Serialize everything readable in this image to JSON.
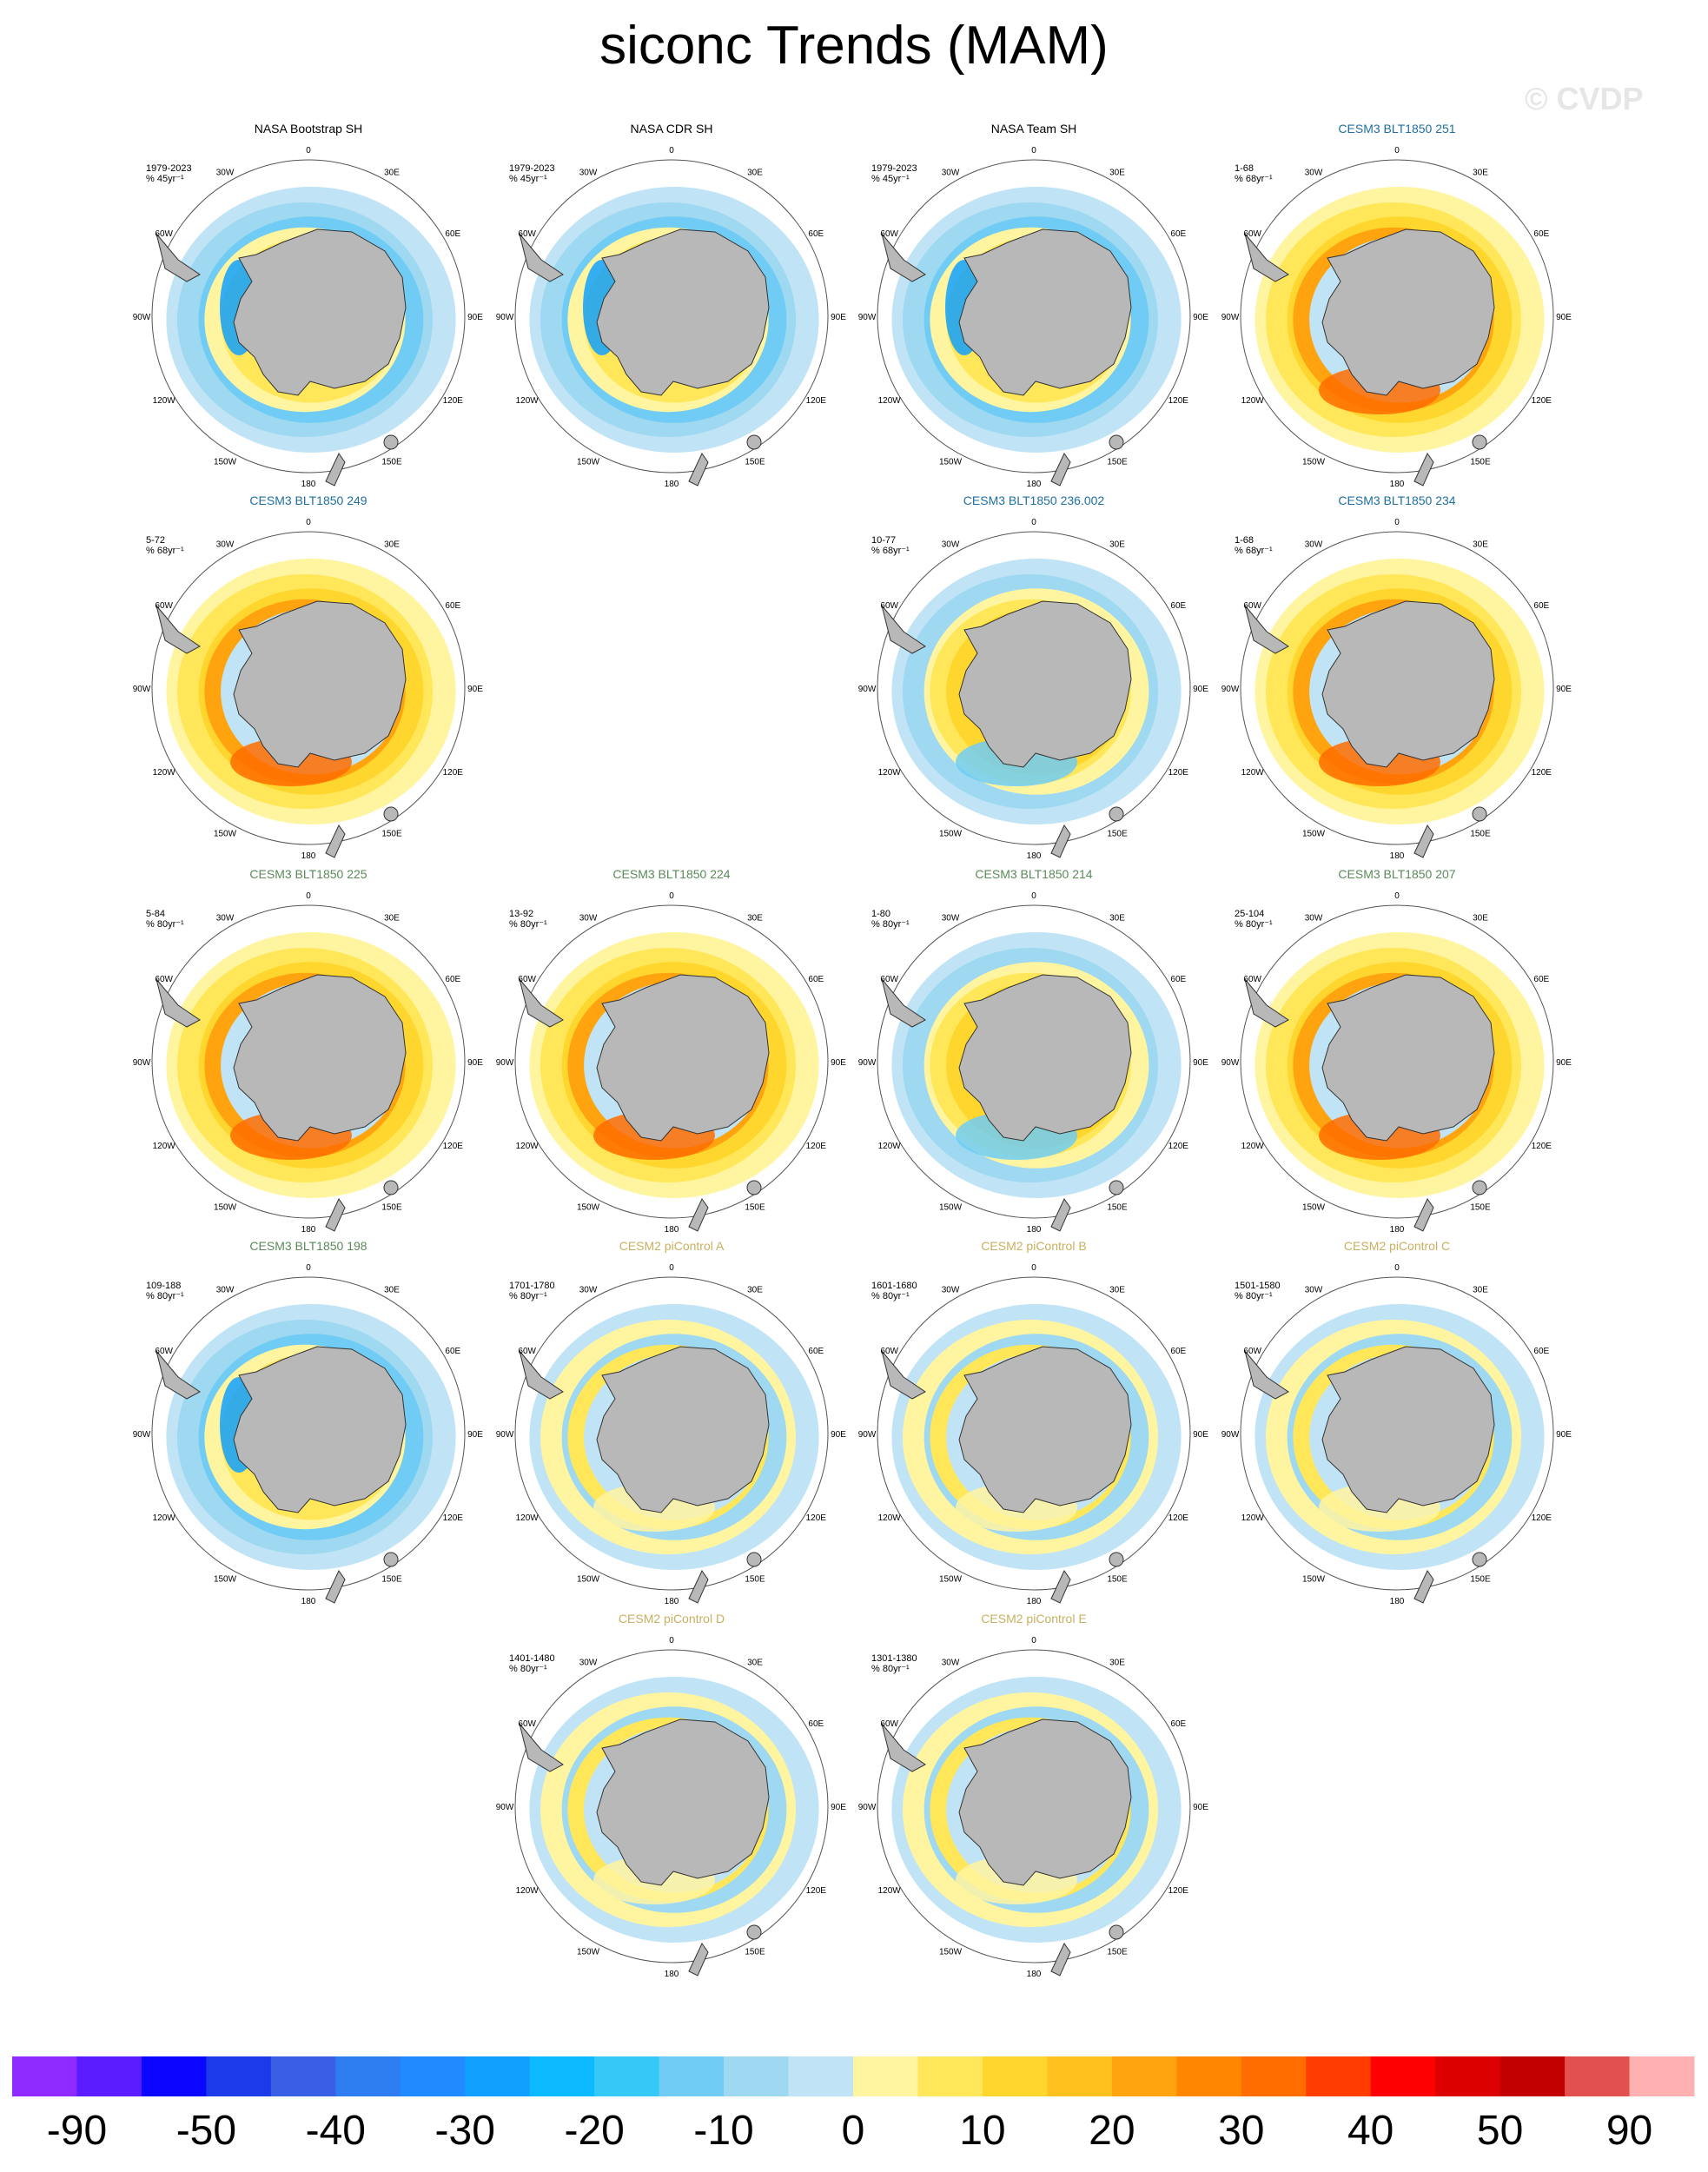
{
  "title": "siconc Trends (MAM)",
  "watermark": "© CVDP",
  "colorbar": {
    "colors": [
      "#8f2bff",
      "#5b1cff",
      "#0a06ff",
      "#1d3ae8",
      "#3a5ee6",
      "#2d7cf0",
      "#1f8bff",
      "#12a0ff",
      "#0bbaff",
      "#36c8f7",
      "#70ccf4",
      "#9ed8f1",
      "#c0e4f6",
      "#fff5a1",
      "#ffe759",
      "#ffd62e",
      "#ffc11d",
      "#ffa40e",
      "#ff8700",
      "#ff6d00",
      "#ff3d00",
      "#ff0000",
      "#dd0000",
      "#c20000",
      "#e25050",
      "#ffb0b0"
    ],
    "labels": [
      "-90",
      "-50",
      "-40",
      "-30",
      "-20",
      "-10",
      "0",
      "10",
      "20",
      "30",
      "40",
      "50",
      "90"
    ]
  },
  "lon_labels": [
    "0",
    "30E",
    "60E",
    "90E",
    "120E",
    "150E",
    "180",
    "150W",
    "120W",
    "90W",
    "60W",
    "30W"
  ],
  "panels": [
    {
      "title": "NASA Bootstrap SH",
      "group": "obs",
      "years": "1979-2023",
      "unit": "% 45yr⁻¹",
      "pattern": "obs"
    },
    {
      "title": "NASA CDR SH",
      "group": "obs",
      "years": "1979-2023",
      "unit": "% 45yr⁻¹",
      "pattern": "obs"
    },
    {
      "title": "NASA Team SH",
      "group": "obs",
      "years": "1979-2023",
      "unit": "% 45yr⁻¹",
      "pattern": "obs"
    },
    {
      "title": "CESM3 BLT1850 251",
      "group": "blt",
      "years": "1-68",
      "unit": "% 68yr⁻¹",
      "pattern": "warm"
    },
    {
      "title": "CESM3 BLT1850 249",
      "group": "blt",
      "years": "5-72",
      "unit": "% 68yr⁻¹",
      "pattern": "warm"
    },
    {
      "title": "CESM3 BLT1850 236.002",
      "group": "blt",
      "years": "10-77",
      "unit": "% 68yr⁻¹",
      "pattern": "mixed"
    },
    {
      "title": "CESM3 BLT1850 234",
      "group": "blt",
      "years": "1-68",
      "unit": "% 68yr⁻¹",
      "pattern": "warm"
    },
    {
      "title": "CESM3 BLT1850 225",
      "group": "blt2",
      "years": "5-84",
      "unit": "% 80yr⁻¹",
      "pattern": "warm"
    },
    {
      "title": "CESM3 BLT1850 224",
      "group": "blt2",
      "years": "13-92",
      "unit": "% 80yr⁻¹",
      "pattern": "warm"
    },
    {
      "title": "CESM3 BLT1850 214",
      "group": "blt2",
      "years": "1-80",
      "unit": "% 80yr⁻¹",
      "pattern": "mixed"
    },
    {
      "title": "CESM3 BLT1850 207",
      "group": "blt2",
      "years": "25-104",
      "unit": "% 80yr⁻¹",
      "pattern": "warm"
    },
    {
      "title": "CESM3 BLT1850 198",
      "group": "blt2",
      "years": "109-188",
      "unit": "% 80yr⁻¹",
      "pattern": "obs"
    },
    {
      "title": "CESM2 piControl A",
      "group": "pic",
      "years": "1701-1780",
      "unit": "% 80yr⁻¹",
      "pattern": "weak"
    },
    {
      "title": "CESM2 piControl B",
      "group": "pic",
      "years": "1601-1680",
      "unit": "% 80yr⁻¹",
      "pattern": "weak"
    },
    {
      "title": "CESM2 piControl C",
      "group": "pic",
      "years": "1501-1580",
      "unit": "% 80yr⁻¹",
      "pattern": "weak"
    },
    {
      "title": "CESM2 piControl D",
      "group": "pic",
      "years": "1401-1480",
      "unit": "% 80yr⁻¹",
      "pattern": "weak"
    },
    {
      "title": "CESM2 piControl E",
      "group": "pic",
      "years": "1301-1380",
      "unit": "% 80yr⁻¹",
      "pattern": "weak"
    }
  ]
}
